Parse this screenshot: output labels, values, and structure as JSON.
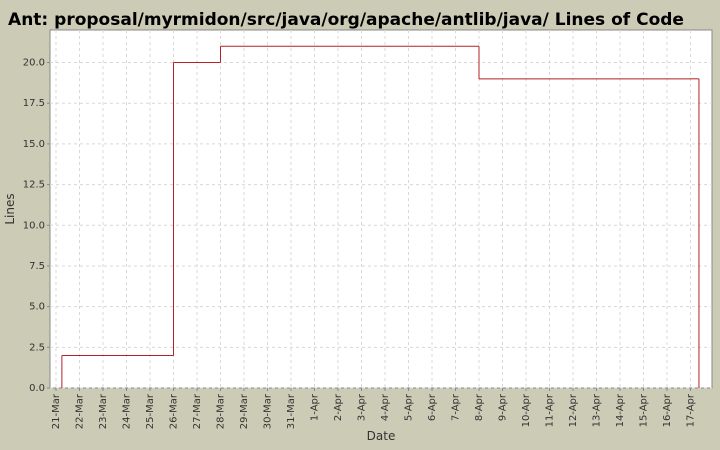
{
  "chart_data": {
    "type": "step",
    "title": "Ant: proposal/myrmidon/src/java/org/apache/antlib/java/ Lines of Code",
    "x_label": "Date",
    "y_label": "Lines",
    "categories": [
      "21-Mar",
      "22-Mar",
      "23-Mar",
      "24-Mar",
      "25-Mar",
      "26-Mar",
      "27-Mar",
      "28-Mar",
      "29-Mar",
      "30-Mar",
      "31-Mar",
      "1-Apr",
      "2-Apr",
      "3-Apr",
      "4-Apr",
      "5-Apr",
      "6-Apr",
      "7-Apr",
      "8-Apr",
      "9-Apr",
      "10-Apr",
      "11-Apr",
      "12-Apr",
      "13-Apr",
      "14-Apr",
      "15-Apr",
      "16-Apr",
      "17-Apr"
    ],
    "values": [
      2,
      2,
      2,
      2,
      2,
      20,
      20,
      21,
      21,
      21,
      21,
      21,
      21,
      21,
      21,
      21,
      21,
      21,
      19,
      19,
      19,
      19,
      19,
      19,
      19,
      19,
      19,
      19
    ],
    "color": "#b22222",
    "ylim": [
      0,
      22
    ],
    "yticks": [
      {
        "value": 0,
        "label": "0.0"
      },
      2.5,
      {
        "value": 5,
        "label": "5.0"
      },
      7.5,
      {
        "value": 10,
        "label": "10.0"
      },
      12.5,
      {
        "value": 15,
        "label": "15.0"
      },
      17.5,
      {
        "value": 20,
        "label": "20.0"
      }
    ],
    "grid": true
  }
}
